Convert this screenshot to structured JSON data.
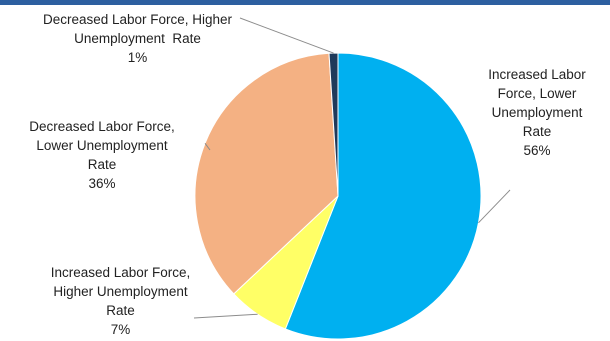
{
  "chart_data": {
    "type": "pie",
    "slices": [
      {
        "label_lines": [
          "Increased Labor",
          "Force, Lower",
          "Unemployment",
          "Rate"
        ],
        "pct_text": "56%",
        "value": 56,
        "color": "#00b0f0"
      },
      {
        "label_lines": [
          "Increased Labor Force,",
          "Higher Unemployment",
          "Rate"
        ],
        "pct_text": "7%",
        "value": 7,
        "color": "#ffff66"
      },
      {
        "label_lines": [
          "Decreased Labor Force,",
          "Lower Unemployment",
          "Rate"
        ],
        "pct_text": "36%",
        "value": 36,
        "color": "#f4b183"
      },
      {
        "label_lines": [
          "Decreased Labor Force, Higher",
          "Unemployment  Rate"
        ],
        "pct_text": "1%",
        "value": 1,
        "color": "#1f3a5a"
      }
    ],
    "start_angle_deg": 0,
    "direction": "clockwise"
  }
}
